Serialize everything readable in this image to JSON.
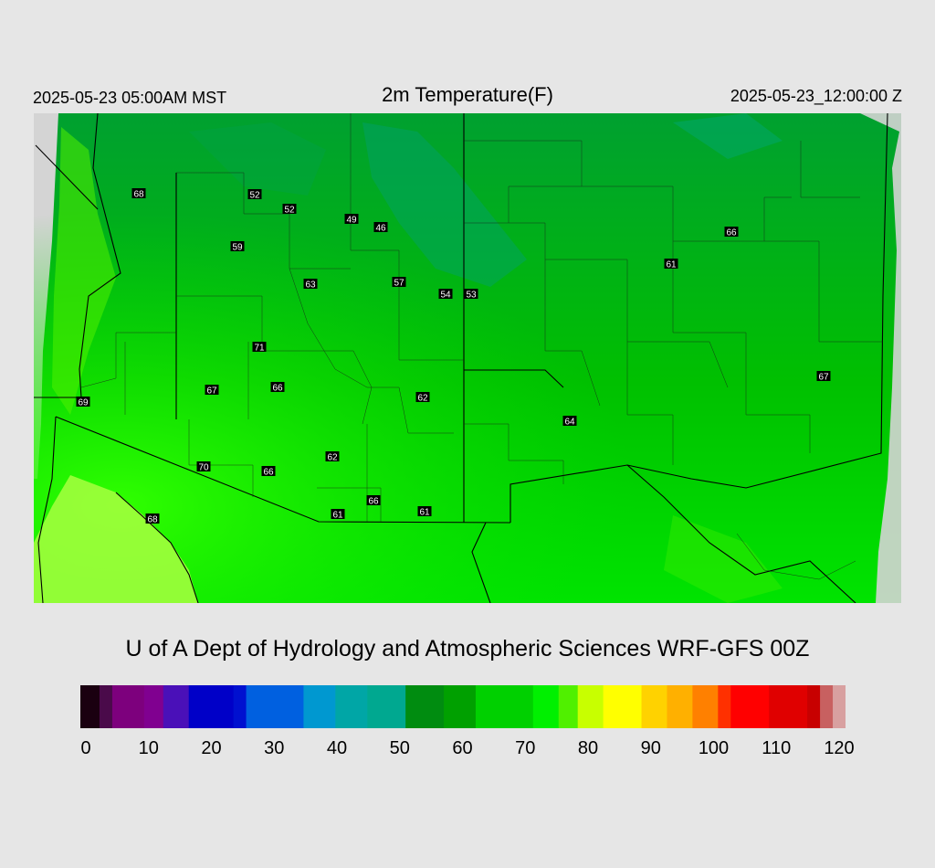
{
  "header": {
    "local_time": "2025-05-23 05:00AM MST",
    "title": "2m Temperature(F)",
    "valid_time": "2025-05-23_12:00:00 Z"
  },
  "footer": {
    "credit": "U of A Dept of Hydrology and Atmospheric Sciences WRF-GFS 00Z"
  },
  "colorbar": {
    "min": 0,
    "max": 120,
    "tick_labels": [
      "0",
      "10",
      "20",
      "30",
      "40",
      "50",
      "60",
      "70",
      "80",
      "90",
      "100",
      "110",
      "120"
    ],
    "stops": [
      {
        "v": 0,
        "c": "#1a0010"
      },
      {
        "v": 3,
        "c": "#4a0a4a"
      },
      {
        "v": 5,
        "c": "#7d007d"
      },
      {
        "v": 10,
        "c": "#800090"
      },
      {
        "v": 13,
        "c": "#4a10b8"
      },
      {
        "v": 17,
        "c": "#0000c8"
      },
      {
        "v": 24,
        "c": "#0010d0"
      },
      {
        "v": 26,
        "c": "#0060e0"
      },
      {
        "v": 35,
        "c": "#0098d0"
      },
      {
        "v": 40,
        "c": "#00a6a6"
      },
      {
        "v": 45,
        "c": "#00a890"
      },
      {
        "v": 51,
        "c": "#008c10"
      },
      {
        "v": 57,
        "c": "#00a000"
      },
      {
        "v": 62,
        "c": "#00d000"
      },
      {
        "v": 71,
        "c": "#00f000"
      },
      {
        "v": 75,
        "c": "#50f000"
      },
      {
        "v": 78,
        "c": "#c8ff00"
      },
      {
        "v": 82,
        "c": "#ffff00"
      },
      {
        "v": 88,
        "c": "#ffd200"
      },
      {
        "v": 92,
        "c": "#ffb000"
      },
      {
        "v": 96,
        "c": "#ff8000"
      },
      {
        "v": 100,
        "c": "#ff3000"
      },
      {
        "v": 102,
        "c": "#ff0000"
      },
      {
        "v": 108,
        "c": "#e00000"
      },
      {
        "v": 114,
        "c": "#c80000"
      },
      {
        "v": 116,
        "c": "#c86060"
      },
      {
        "v": 118,
        "c": "#d8a0a0"
      },
      {
        "v": 120,
        "c": "#d8d8d8"
      }
    ]
  },
  "station_values": [
    "68",
    "52",
    "52",
    "49",
    "46",
    "59",
    "63",
    "57",
    "54",
    "53",
    "61",
    "66",
    "71",
    "67",
    "66",
    "62",
    "69",
    "62",
    "64",
    "70",
    "66",
    "66",
    "61",
    "61",
    "68",
    "67"
  ],
  "colors": {
    "background": "#e6e6e6",
    "land": "#00c800",
    "ocean": "#a8ff40",
    "boundary": "#000000"
  }
}
